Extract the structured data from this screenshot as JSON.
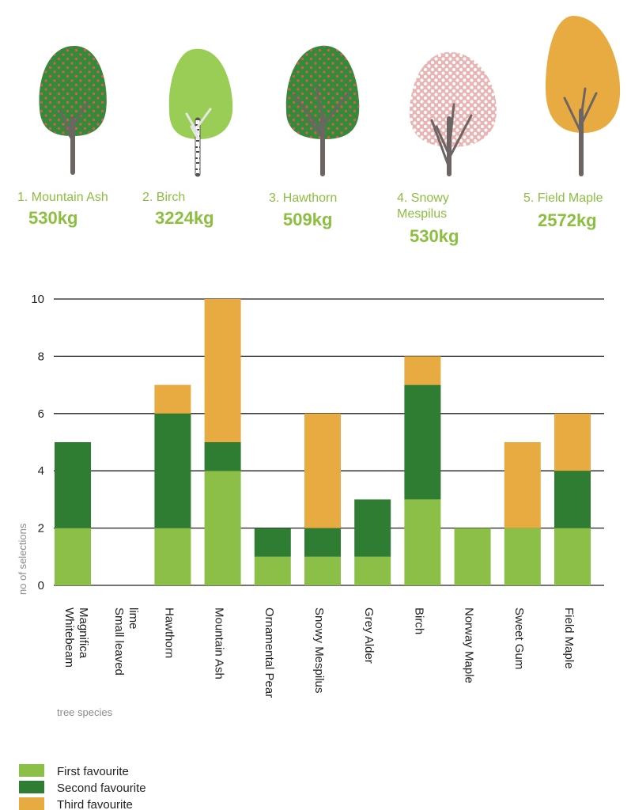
{
  "trees": [
    {
      "name_lines": [
        "1. Mountain Ash"
      ],
      "weight": "530kg",
      "crown_color": "#338a3a",
      "pattern": "red-dots"
    },
    {
      "name_lines": [
        "2. Birch"
      ],
      "weight": "3224kg",
      "crown_color": "#9acd55",
      "pattern": "none"
    },
    {
      "name_lines": [
        "3. Hawthorn"
      ],
      "weight": "509kg",
      "crown_color": "#338a3a",
      "pattern": "red-dots"
    },
    {
      "name_lines": [
        "4. Snowy",
        "Mespilus"
      ],
      "weight": "530kg",
      "crown_color": "#e9b4b4",
      "pattern": "white-dots"
    },
    {
      "name_lines": [
        "5. Field Maple"
      ],
      "weight": "2572kg",
      "crown_color": "#e8ab42",
      "pattern": "none"
    }
  ],
  "chart_data": {
    "type": "bar",
    "stacked": true,
    "categories": [
      [
        "Whitebeam",
        "Magnifica"
      ],
      [
        "Small leaved",
        "lime"
      ],
      [
        "Hawthorn"
      ],
      [
        "Mountain Ash"
      ],
      [
        "Ornamental Pear"
      ],
      [
        "Snowy Mespilus"
      ],
      [
        "Grey Alder"
      ],
      [
        "Birch"
      ],
      [
        "Norway Maple"
      ],
      [
        "Sweet Gum"
      ],
      [
        "Field Maple"
      ]
    ],
    "series": [
      {
        "name": "First favourite",
        "color": "#8cbf47",
        "values": [
          2,
          0,
          2,
          4,
          1,
          1,
          1,
          3,
          2,
          2,
          2
        ]
      },
      {
        "name": "Second favourite",
        "color": "#2e7d32",
        "values": [
          3,
          0,
          4,
          1,
          1,
          1,
          2,
          4,
          0,
          0,
          2
        ]
      },
      {
        "name": "Third favourite",
        "color": "#e8ab42",
        "values": [
          0,
          0,
          1,
          5,
          0,
          4,
          0,
          1,
          0,
          3,
          2
        ]
      }
    ],
    "ylabel": "no of selections",
    "xlabel": "tree species",
    "ylim": [
      0,
      10
    ],
    "yticks": [
      "0",
      "2",
      "4",
      "6",
      "8",
      "10"
    ],
    "grid": true,
    "legend_position": "bottom-left"
  }
}
